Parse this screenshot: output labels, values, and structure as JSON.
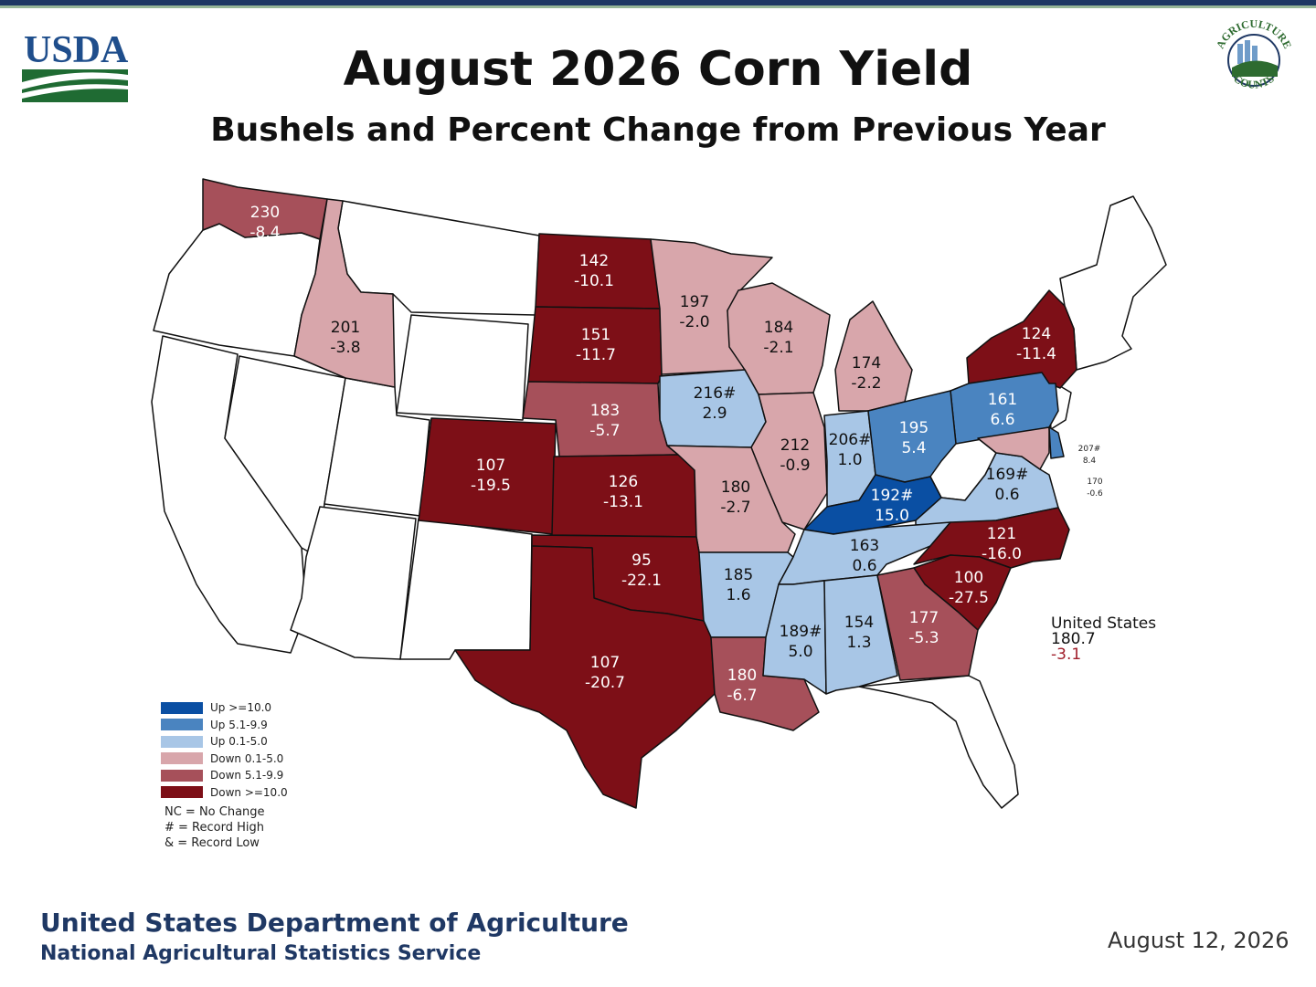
{
  "title": "August 2026 Corn Yield",
  "subtitle": "Bushels and Percent Change from Previous Year",
  "logo_text": "USDA",
  "seal_text": {
    "top": "AGRICULTURE",
    "bottom": "COUNTS"
  },
  "colors": {
    "up_10": "#0a4fa3",
    "up_5": "#4a84c0",
    "up_0": "#a8c6e6",
    "down_0": "#d8a6ab",
    "down_5": "#a6505a",
    "down_10": "#7d0f17",
    "no_data": "#ffffff",
    "footer_blue": "#1f3864"
  },
  "legend": {
    "items": [
      {
        "label": "Up >=10.0",
        "color": "#0a4fa3"
      },
      {
        "label": "Up 5.1-9.9",
        "color": "#4a84c0"
      },
      {
        "label": "Up 0.1-5.0",
        "color": "#a8c6e6"
      },
      {
        "label": "Down 0.1-5.0",
        "color": "#d8a6ab"
      },
      {
        "label": "Down 5.1-9.9",
        "color": "#a6505a"
      },
      {
        "label": "Down >=10.0",
        "color": "#7d0f17"
      }
    ],
    "notes": [
      "NC = No Change",
      "# = Record High",
      "& = Record Low"
    ]
  },
  "states": {
    "WA": {
      "yield": "230",
      "change": "-8.4",
      "cls": "down_5"
    },
    "ID": {
      "yield": "201",
      "change": "-3.8",
      "cls": "down_0"
    },
    "ND": {
      "yield": "142",
      "change": "-10.1",
      "cls": "down_10"
    },
    "SD": {
      "yield": "151",
      "change": "-11.7",
      "cls": "down_10"
    },
    "MN": {
      "yield": "197",
      "change": "-2.0",
      "cls": "down_0"
    },
    "WI": {
      "yield": "184",
      "change": "-2.1",
      "cls": "down_0"
    },
    "MI": {
      "yield": "174",
      "change": "-2.2",
      "cls": "down_0"
    },
    "NY": {
      "yield": "124",
      "change": "-11.4",
      "cls": "down_10"
    },
    "PA": {
      "yield": "161",
      "change": "6.6",
      "cls": "up_5"
    },
    "IA": {
      "yield": "216#",
      "change": "2.9",
      "cls": "up_0"
    },
    "NE": {
      "yield": "183",
      "change": "-5.7",
      "cls": "down_5"
    },
    "CO": {
      "yield": "107",
      "change": "-19.5",
      "cls": "down_10"
    },
    "KS": {
      "yield": "126",
      "change": "-13.1",
      "cls": "down_10"
    },
    "IL": {
      "yield": "212",
      "change": "-0.9",
      "cls": "down_0"
    },
    "IN": {
      "yield": "206#",
      "change": "1.0",
      "cls": "up_0"
    },
    "OH": {
      "yield": "195",
      "change": "5.4",
      "cls": "up_5"
    },
    "MO": {
      "yield": "180",
      "change": "-2.7",
      "cls": "down_0"
    },
    "KY": {
      "yield": "192#",
      "change": "15.0",
      "cls": "up_10"
    },
    "VA": {
      "yield": "169#",
      "change": "0.6",
      "cls": "up_0"
    },
    "DE": {
      "yield": "207#",
      "change": "8.4",
      "cls": "up_5"
    },
    "MD": {
      "yield": "170",
      "change": "-0.6",
      "cls": "down_0"
    },
    "OK": {
      "yield": "95",
      "change": "-22.1",
      "cls": "down_10"
    },
    "AR": {
      "yield": "185",
      "change": "1.6",
      "cls": "up_0"
    },
    "TN": {
      "yield": "163",
      "change": "0.6",
      "cls": "up_0"
    },
    "NC": {
      "yield": "121",
      "change": "-16.0",
      "cls": "down_10"
    },
    "SC": {
      "yield": "100",
      "change": "-27.5",
      "cls": "down_10"
    },
    "TX": {
      "yield": "107",
      "change": "-20.7",
      "cls": "down_10"
    },
    "MS": {
      "yield": "189#",
      "change": "5.0",
      "cls": "up_0"
    },
    "AL": {
      "yield": "154",
      "change": "1.3",
      "cls": "up_0"
    },
    "GA": {
      "yield": "177",
      "change": "-5.3",
      "cls": "down_5"
    },
    "LA": {
      "yield": "180",
      "change": "-6.7",
      "cls": "down_5"
    }
  },
  "us_summary": {
    "label": "United States",
    "yield": "180.7",
    "change": "-3.1"
  },
  "footer": {
    "dept": "United States Department of Agriculture",
    "service": "National Agricultural Statistics Service",
    "date": "August 12, 2026"
  }
}
